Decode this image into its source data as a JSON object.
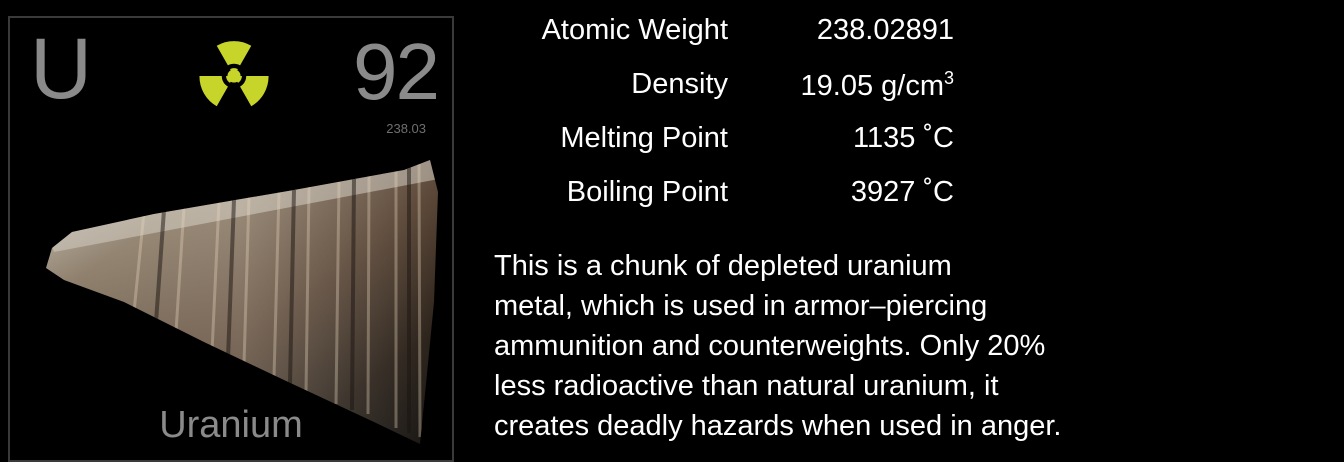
{
  "element": {
    "symbol": "U",
    "atomic_number": "92",
    "small_weight": "238.03",
    "name": "Uranium",
    "hazard_icon": "radiation-icon",
    "colors": {
      "tile_text": "#8a8a8a",
      "hazard": "#c7d52b",
      "background": "#000000"
    }
  },
  "properties": [
    {
      "label": "Atomic Weight",
      "value": "238.02891",
      "suffix": ""
    },
    {
      "label": "Density",
      "value": "19.05 g/cm",
      "suffix": "3"
    },
    {
      "label": "Melting Point",
      "value": "1135 ˚C",
      "suffix": ""
    },
    {
      "label": "Boiling Point",
      "value": "3927 ˚C",
      "suffix": ""
    }
  ],
  "description_lines": [
    "This is a chunk of depleted uranium",
    "metal, which is used in armor–piercing",
    "ammunition and counterweights. Only 20%",
    "less radioactive than natural uranium, it",
    "creates deadly hazards when used in anger."
  ]
}
